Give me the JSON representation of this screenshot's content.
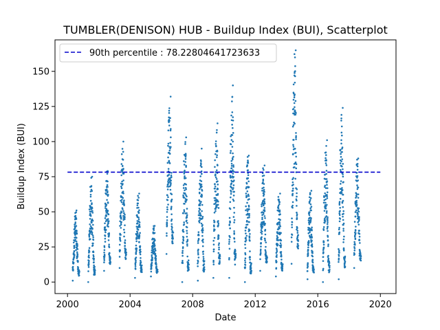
{
  "chart_data": {
    "type": "scatter",
    "title": "TUMBLER(DENISON) HUB - Buildup Index (BUI), Scatterplot",
    "xlabel": "Date",
    "ylabel": "Buildup Index (BUI)",
    "xlim": [
      1999.2,
      2021.0
    ],
    "ylim": [
      -8.2,
      172.4
    ],
    "xticks": [
      2000,
      2004,
      2008,
      2012,
      2016,
      2020
    ],
    "xtick_labels": [
      "2000",
      "2004",
      "2008",
      "2012",
      "2016",
      "2020"
    ],
    "yticks": [
      0,
      25,
      50,
      75,
      100,
      125,
      150
    ],
    "ytick_labels": [
      "0",
      "25",
      "50",
      "75",
      "100",
      "125",
      "150"
    ],
    "legend": {
      "position": "top-left",
      "label": "90th percentile : 78.22804641723633"
    },
    "colors": {
      "points": "#1f77b4",
      "percentile_line": "#0000cc"
    },
    "series": [
      {
        "seasons": [
          {
            "start": 2000.33,
            "end": 2000.75,
            "min": 1,
            "peak": 51
          },
          {
            "start": 2001.33,
            "end": 2001.75,
            "min": 0,
            "peak": 75
          },
          {
            "start": 2002.33,
            "end": 2002.75,
            "min": 8,
            "peak": 79
          },
          {
            "start": 2003.33,
            "end": 2003.75,
            "min": 10,
            "peak": 100
          },
          {
            "start": 2004.33,
            "end": 2004.75,
            "min": 3,
            "peak": 63
          },
          {
            "start": 2005.33,
            "end": 2005.75,
            "min": 4,
            "peak": 40
          },
          {
            "start": 2006.33,
            "end": 2006.75,
            "min": 20,
            "peak": 132
          },
          {
            "start": 2007.33,
            "end": 2007.75,
            "min": 0,
            "peak": 103
          },
          {
            "start": 2008.33,
            "end": 2008.75,
            "min": 1,
            "peak": 95
          },
          {
            "start": 2009.33,
            "end": 2009.75,
            "min": 3,
            "peak": 113
          },
          {
            "start": 2010.33,
            "end": 2010.75,
            "min": 3,
            "peak": 140
          },
          {
            "start": 2011.33,
            "end": 2011.75,
            "min": 0,
            "peak": 90
          },
          {
            "start": 2012.33,
            "end": 2012.75,
            "min": 8,
            "peak": 83
          },
          {
            "start": 2013.33,
            "end": 2013.75,
            "min": 4,
            "peak": 63
          },
          {
            "start": 2014.33,
            "end": 2014.75,
            "min": 13,
            "peak": 165
          },
          {
            "start": 2015.33,
            "end": 2015.75,
            "min": 2,
            "peak": 65
          },
          {
            "start": 2016.33,
            "end": 2016.75,
            "min": 0,
            "peak": 101
          },
          {
            "start": 2017.33,
            "end": 2017.75,
            "min": 2,
            "peak": 124
          },
          {
            "start": 2018.33,
            "end": 2018.75,
            "min": 10,
            "peak": 88
          }
        ]
      }
    ],
    "percentile": {
      "value": 78.22804641723633,
      "x_range": [
        2000.0,
        2020.0
      ]
    }
  }
}
